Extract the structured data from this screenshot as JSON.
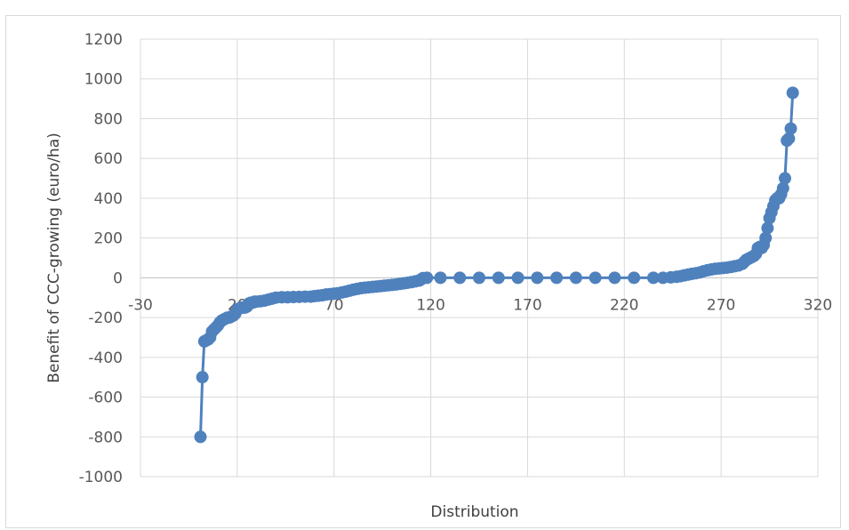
{
  "chart_data": {
    "type": "scatter",
    "title": "",
    "xlabel": "Distribution",
    "ylabel": "Benefit of CCC-growing (euro/ha)",
    "xlim": [
      -30,
      320
    ],
    "ylim": [
      -1000,
      1200
    ],
    "x_ticks": [
      "-30",
      "20",
      "70",
      "120",
      "170",
      "220",
      "270",
      "320"
    ],
    "y_ticks": [
      "1200",
      "1000",
      "800",
      "600",
      "400",
      "200",
      "0",
      "-200",
      "-400",
      "-600",
      "-800",
      "-1000"
    ],
    "grid": true,
    "series_color": "#4f81bd",
    "series": [
      {
        "values": [
          [
            1,
            -800
          ],
          [
            2,
            -500
          ],
          [
            3,
            -320
          ],
          [
            4,
            -315
          ],
          [
            5,
            -310
          ],
          [
            6,
            -300
          ],
          [
            7,
            -270
          ],
          [
            8,
            -260
          ],
          [
            9,
            -250
          ],
          [
            10,
            -240
          ],
          [
            11,
            -225
          ],
          [
            12,
            -215
          ],
          [
            13,
            -210
          ],
          [
            14,
            -205
          ],
          [
            15,
            -200
          ],
          [
            16,
            -200
          ],
          [
            17,
            -195
          ],
          [
            18,
            -190
          ],
          [
            19,
            -180
          ],
          [
            20,
            -160
          ],
          [
            21,
            -155
          ],
          [
            22,
            -150
          ],
          [
            23,
            -150
          ],
          [
            24,
            -150
          ],
          [
            25,
            -145
          ],
          [
            26,
            -130
          ],
          [
            27,
            -125
          ],
          [
            28,
            -125
          ],
          [
            29,
            -120
          ],
          [
            30,
            -120
          ],
          [
            32,
            -118
          ],
          [
            34,
            -115
          ],
          [
            36,
            -110
          ],
          [
            38,
            -105
          ],
          [
            40,
            -100
          ],
          [
            43,
            -98
          ],
          [
            46,
            -98
          ],
          [
            49,
            -97
          ],
          [
            52,
            -96
          ],
          [
            55,
            -95
          ],
          [
            58,
            -95
          ],
          [
            60,
            -92
          ],
          [
            62,
            -90
          ],
          [
            64,
            -88
          ],
          [
            66,
            -84
          ],
          [
            68,
            -82
          ],
          [
            70,
            -80
          ],
          [
            72,
            -78
          ],
          [
            74,
            -74
          ],
          [
            76,
            -70
          ],
          [
            78,
            -65
          ],
          [
            80,
            -60
          ],
          [
            82,
            -56
          ],
          [
            84,
            -52
          ],
          [
            86,
            -50
          ],
          [
            88,
            -48
          ],
          [
            90,
            -46
          ],
          [
            92,
            -44
          ],
          [
            94,
            -42
          ],
          [
            96,
            -40
          ],
          [
            98,
            -38
          ],
          [
            100,
            -36
          ],
          [
            102,
            -34
          ],
          [
            104,
            -31
          ],
          [
            106,
            -28
          ],
          [
            108,
            -25
          ],
          [
            110,
            -22
          ],
          [
            112,
            -18
          ],
          [
            114,
            -14
          ],
          [
            115,
            -8
          ],
          [
            116,
            -2
          ],
          [
            118,
            0
          ],
          [
            125,
            0
          ],
          [
            135,
            0
          ],
          [
            145,
            0
          ],
          [
            155,
            0
          ],
          [
            165,
            0
          ],
          [
            175,
            0
          ],
          [
            185,
            0
          ],
          [
            195,
            0
          ],
          [
            205,
            0
          ],
          [
            215,
            0
          ],
          [
            225,
            0
          ],
          [
            235,
            0
          ],
          [
            240,
            0
          ],
          [
            244,
            2
          ],
          [
            247,
            5
          ],
          [
            249,
            8
          ],
          [
            251,
            12
          ],
          [
            253,
            16
          ],
          [
            255,
            20
          ],
          [
            257,
            23
          ],
          [
            259,
            27
          ],
          [
            261,
            33
          ],
          [
            263,
            38
          ],
          [
            265,
            42
          ],
          [
            267,
            45
          ],
          [
            269,
            47
          ],
          [
            271,
            49
          ],
          [
            273,
            51
          ],
          [
            275,
            54
          ],
          [
            277,
            58
          ],
          [
            279,
            62
          ],
          [
            281,
            70
          ],
          [
            282,
            80
          ],
          [
            283,
            90
          ],
          [
            284,
            95
          ],
          [
            285,
            100
          ],
          [
            286,
            105
          ],
          [
            287,
            110
          ],
          [
            288,
            120
          ],
          [
            289,
            150
          ],
          [
            290,
            155
          ],
          [
            291,
            150
          ],
          [
            292,
            165
          ],
          [
            293,
            200
          ],
          [
            294,
            250
          ],
          [
            295,
            300
          ],
          [
            296,
            330
          ],
          [
            297,
            360
          ],
          [
            298,
            390
          ],
          [
            299,
            400
          ],
          [
            300,
            400
          ],
          [
            301,
            420
          ],
          [
            302,
            450
          ],
          [
            303,
            500
          ],
          [
            304,
            690
          ],
          [
            305,
            700
          ],
          [
            306,
            750
          ],
          [
            307,
            930
          ]
        ]
      }
    ]
  }
}
